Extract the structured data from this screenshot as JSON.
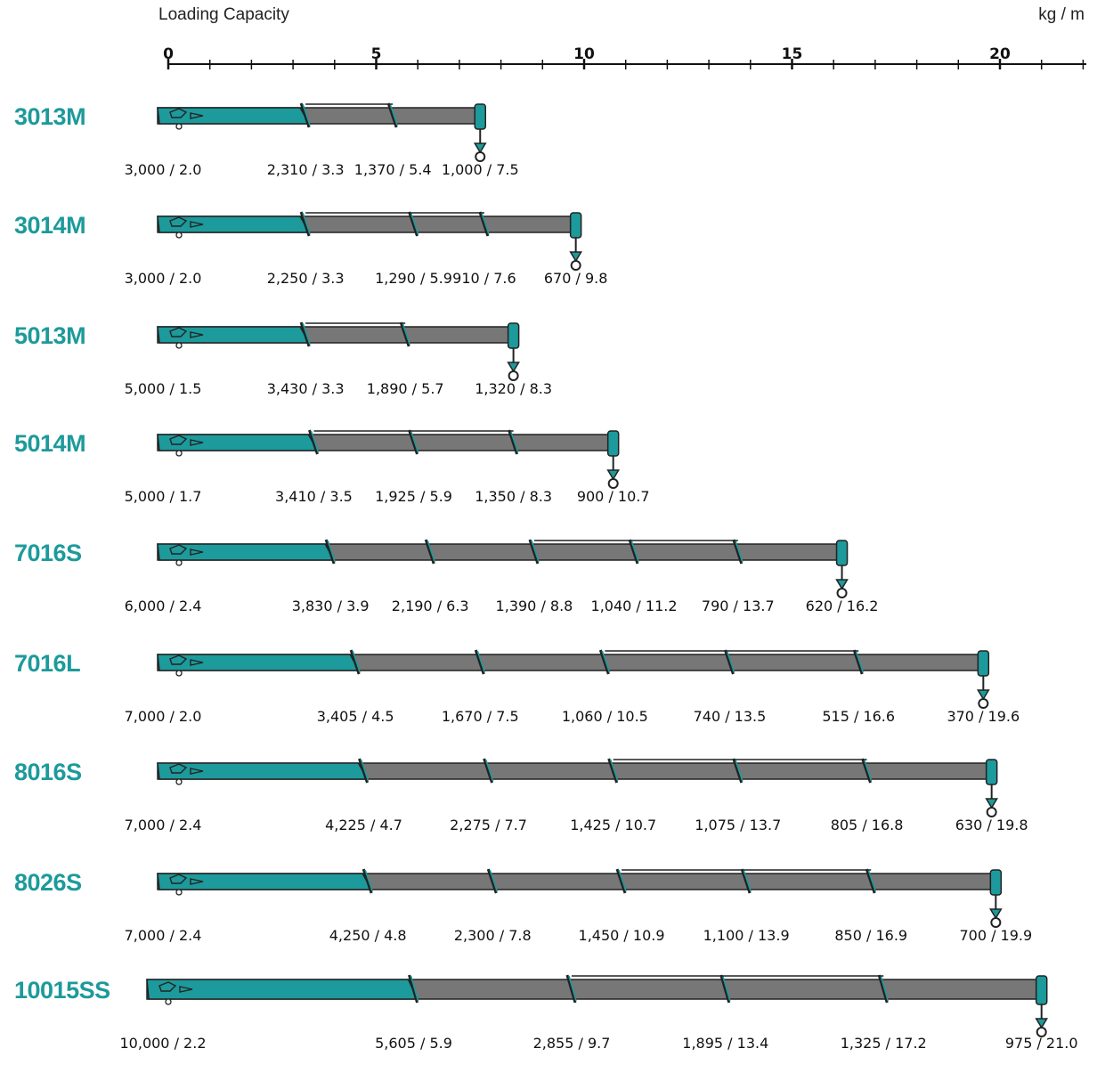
{
  "scale": {
    "title": "Loading Capacity",
    "unit": "kg / m",
    "ticks": [
      0,
      5,
      10,
      15,
      20
    ],
    "max": 22
  },
  "colors": {
    "teal": "#1d9a9b",
    "boom_gray": "#777777",
    "outline": "#222222"
  },
  "cranes": [
    {
      "model": "3013M",
      "reach": 7.5,
      "extension_reach": 5.4,
      "loads": [
        {
          "label": "3,000 / 2.0",
          "kg": 3000,
          "m": 2.0
        },
        {
          "label": "2,310 / 3.3",
          "kg": 2310,
          "m": 3.3
        },
        {
          "label": "1,370 / 5.4",
          "kg": 1370,
          "m": 5.4
        },
        {
          "label": "1,000 / 7.5",
          "kg": 1000,
          "m": 7.5
        }
      ]
    },
    {
      "model": "3014M",
      "reach": 9.8,
      "extension_reach": 7.6,
      "loads": [
        {
          "label": "3,000 / 2.0",
          "kg": 3000,
          "m": 2.0
        },
        {
          "label": "2,250 / 3.3",
          "kg": 2250,
          "m": 3.3
        },
        {
          "label": "1,290 / 5.9",
          "kg": 1290,
          "m": 5.9
        },
        {
          "label": "910 / 7.6",
          "kg": 910,
          "m": 7.6
        },
        {
          "label": "670 / 9.8",
          "kg": 670,
          "m": 9.8
        }
      ]
    },
    {
      "model": "5013M",
      "reach": 8.3,
      "extension_reach": 5.7,
      "loads": [
        {
          "label": "5,000 / 1.5",
          "kg": 5000,
          "m": 1.5
        },
        {
          "label": "3,430 / 3.3",
          "kg": 3430,
          "m": 3.3
        },
        {
          "label": "1,890 / 5.7",
          "kg": 1890,
          "m": 5.7
        },
        {
          "label": "1,320 / 8.3",
          "kg": 1320,
          "m": 8.3
        }
      ]
    },
    {
      "model": "5014M",
      "reach": 10.7,
      "extension_reach": 8.3,
      "loads": [
        {
          "label": "5,000 / 1.7",
          "kg": 5000,
          "m": 1.7
        },
        {
          "label": "3,410 / 3.5",
          "kg": 3410,
          "m": 3.5
        },
        {
          "label": "1,925 / 5.9",
          "kg": 1925,
          "m": 5.9
        },
        {
          "label": "1,350 / 8.3",
          "kg": 1350,
          "m": 8.3
        },
        {
          "label": "900 / 10.7",
          "kg": 900,
          "m": 10.7
        }
      ]
    },
    {
      "model": "7016S",
      "reach": 16.2,
      "extension_reach": 13.7,
      "loads": [
        {
          "label": "6,000 / 2.4",
          "kg": 6000,
          "m": 2.4
        },
        {
          "label": "3,830 / 3.9",
          "kg": 3830,
          "m": 3.9
        },
        {
          "label": "2,190 / 6.3",
          "kg": 2190,
          "m": 6.3
        },
        {
          "label": "1,390 / 8.8",
          "kg": 1390,
          "m": 8.8
        },
        {
          "label": "1,040 / 11.2",
          "kg": 1040,
          "m": 11.2
        },
        {
          "label": "790 / 13.7",
          "kg": 790,
          "m": 13.7
        },
        {
          "label": "620 / 16.2",
          "kg": 620,
          "m": 16.2
        }
      ]
    },
    {
      "model": "7016L",
      "reach": 19.6,
      "extension_reach": 16.6,
      "loads": [
        {
          "label": "7,000 / 2.0",
          "kg": 7000,
          "m": 2.0
        },
        {
          "label": "3,405 / 4.5",
          "kg": 3405,
          "m": 4.5
        },
        {
          "label": "1,670 / 7.5",
          "kg": 1670,
          "m": 7.5
        },
        {
          "label": "1,060 / 10.5",
          "kg": 1060,
          "m": 10.5
        },
        {
          "label": "740 / 13.5",
          "kg": 740,
          "m": 13.5
        },
        {
          "label": "515 / 16.6",
          "kg": 515,
          "m": 16.6
        },
        {
          "label": "370 / 19.6",
          "kg": 370,
          "m": 19.6
        }
      ]
    },
    {
      "model": "8016S",
      "reach": 19.8,
      "extension_reach": 16.8,
      "loads": [
        {
          "label": "7,000 / 2.4",
          "kg": 7000,
          "m": 2.4
        },
        {
          "label": "4,225 / 4.7",
          "kg": 4225,
          "m": 4.7
        },
        {
          "label": "2,275 / 7.7",
          "kg": 2275,
          "m": 7.7
        },
        {
          "label": "1,425 / 10.7",
          "kg": 1425,
          "m": 10.7
        },
        {
          "label": "1,075 / 13.7",
          "kg": 1075,
          "m": 13.7
        },
        {
          "label": "805 / 16.8",
          "kg": 805,
          "m": 16.8
        },
        {
          "label": "630 / 19.8",
          "kg": 630,
          "m": 19.8
        }
      ]
    },
    {
      "model": "8026S",
      "reach": 19.9,
      "extension_reach": 16.9,
      "loads": [
        {
          "label": "7,000 / 2.4",
          "kg": 7000,
          "m": 2.4
        },
        {
          "label": "4,250 / 4.8",
          "kg": 4250,
          "m": 4.8
        },
        {
          "label": "2,300 / 7.8",
          "kg": 2300,
          "m": 7.8
        },
        {
          "label": "1,450 / 10.9",
          "kg": 1450,
          "m": 10.9
        },
        {
          "label": "1,100 / 13.9",
          "kg": 1100,
          "m": 13.9
        },
        {
          "label": "850 / 16.9",
          "kg": 850,
          "m": 16.9
        },
        {
          "label": "700 / 19.9",
          "kg": 700,
          "m": 19.9
        }
      ]
    },
    {
      "model": "10015SS",
      "reach": 21.0,
      "extension_reach": 17.2,
      "loads": [
        {
          "label": "10,000 / 2.2",
          "kg": 10000,
          "m": 2.2
        },
        {
          "label": "5,605 / 5.9",
          "kg": 5605,
          "m": 5.9
        },
        {
          "label": "2,855 / 9.7",
          "kg": 2855,
          "m": 9.7
        },
        {
          "label": "1,895 / 13.4",
          "kg": 1895,
          "m": 13.4
        },
        {
          "label": "1,325 / 17.2",
          "kg": 1325,
          "m": 17.2
        },
        {
          "label": "975 / 21.0",
          "kg": 975,
          "m": 21.0
        }
      ]
    }
  ]
}
